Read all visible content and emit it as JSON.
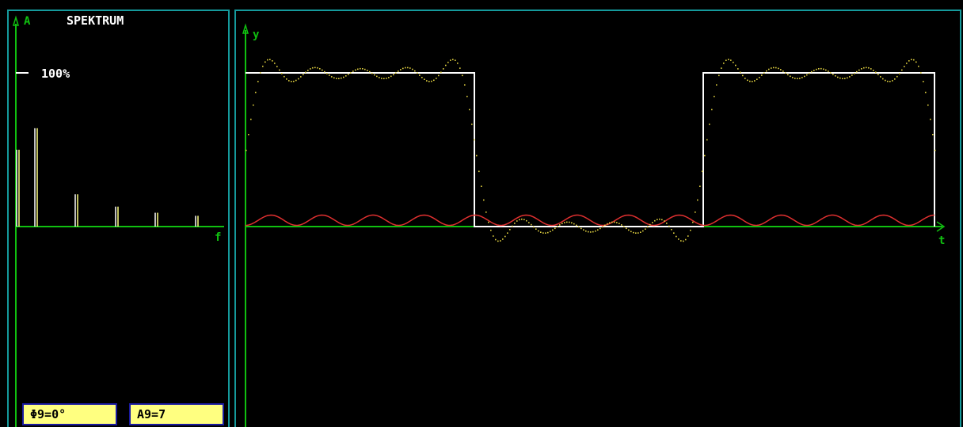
{
  "spectrum": {
    "axis_label_a": "A",
    "title": "SPEKTRUM",
    "ref_label": "100%",
    "axis_label_f": "f",
    "amplitudes": [
      0.5,
      0.64,
      0.21,
      0.13,
      0.09,
      0.07
    ],
    "bar_color": "#ffff80"
  },
  "waveform": {
    "axis_label_y": "y",
    "axis_label_t": "t",
    "square_color": "#ffffff",
    "fourier_color": "#e0d040",
    "harmonic_color": "#e03030",
    "axis_color": "#10c010"
  },
  "params": {
    "phase_label": "Φ9=0°",
    "amp_label": "A9=7"
  }
}
